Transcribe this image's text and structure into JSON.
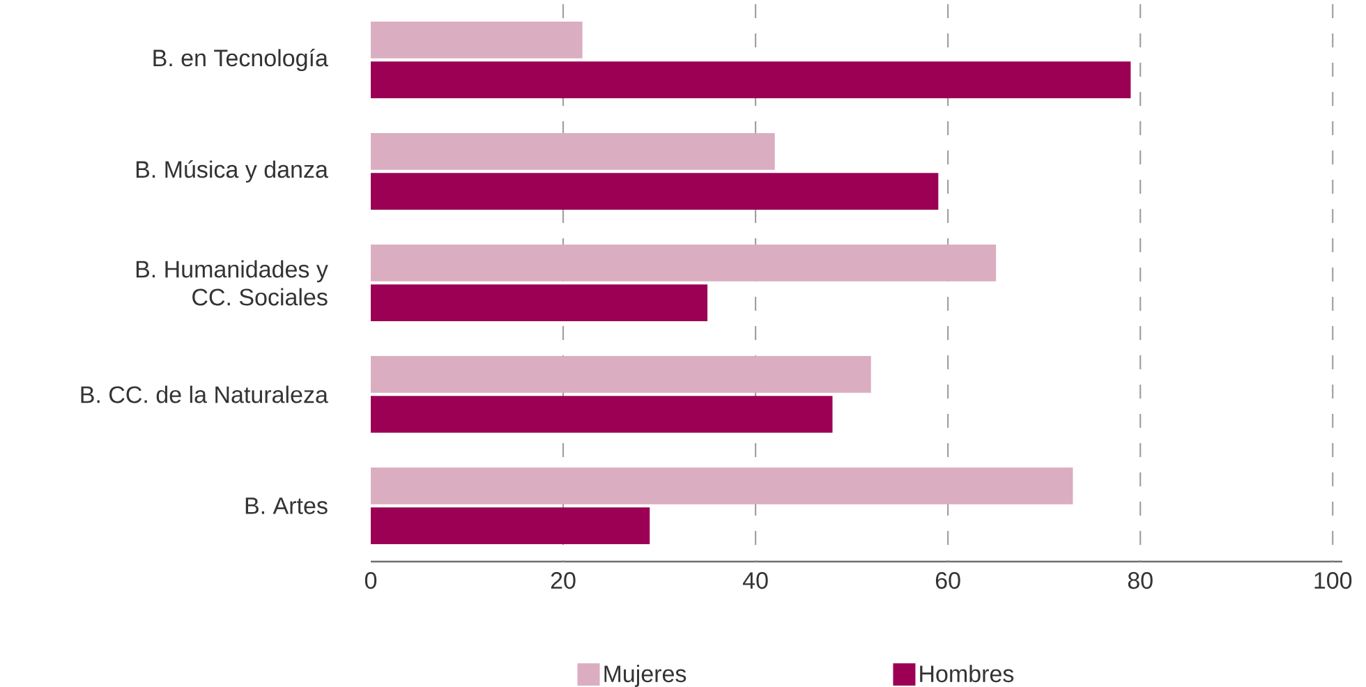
{
  "chart_data": {
    "type": "bar",
    "orientation": "horizontal",
    "categories": [
      "B. en Tecnología",
      "B. Música y danza",
      "B. Humanidades y CC. Sociales",
      "B. CC. de la Naturaleza",
      "B. Artes"
    ],
    "series": [
      {
        "name": "Mujeres",
        "color": "#dbadc0",
        "values": [
          22,
          42,
          65,
          52,
          73
        ]
      },
      {
        "name": "Hombres",
        "color": "#9b0055",
        "values": [
          79,
          59,
          35,
          48,
          29
        ]
      }
    ],
    "xlim": [
      0,
      101
    ],
    "xticks": [
      0,
      20,
      40,
      60,
      80,
      100
    ],
    "grid": "x",
    "legend": "bottom"
  }
}
